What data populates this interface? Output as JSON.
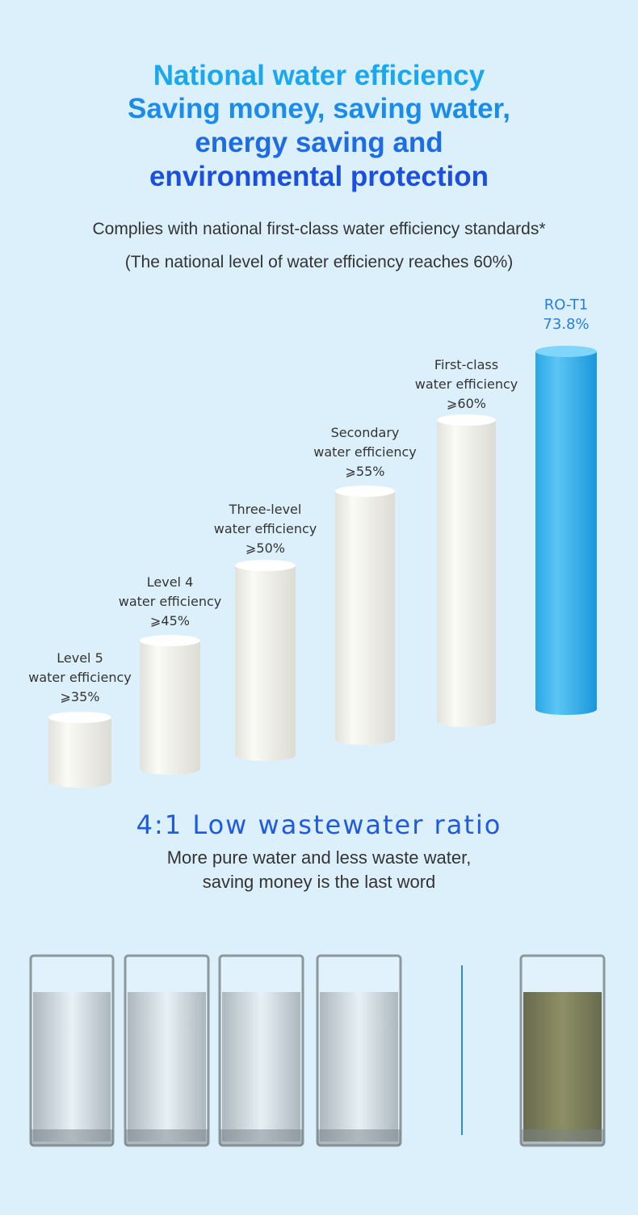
{
  "header": {
    "title": [
      "National water efficiency",
      "Saving money, saving water,",
      "energy saving and",
      "environmental protection"
    ],
    "subtitle": [
      "Complies with national first-class water efficiency standards*",
      "(The national level of water efficiency reaches 60%)"
    ]
  },
  "levels": [
    {
      "label": [
        "Level 5",
        "water efficiency"
      ],
      "value": "⩾35%"
    },
    {
      "label": [
        "Level 4",
        "water efficiency"
      ],
      "value": "⩾45%"
    },
    {
      "label": [
        "Three-level",
        "water efficiency"
      ],
      "value": "⩾50%"
    },
    {
      "label": [
        "Secondary",
        "water efficiency"
      ],
      "value": "⩾55%"
    },
    {
      "label": [
        "First-class",
        "water efficiency"
      ],
      "value": "⩾60%"
    },
    {
      "label": [
        "RO-T1"
      ],
      "value": "73.8%"
    }
  ],
  "ratio": {
    "title": "4:1 Low wastewater ratio",
    "text": [
      "More pure water and less waste water,",
      "saving money is the last word"
    ]
  }
}
